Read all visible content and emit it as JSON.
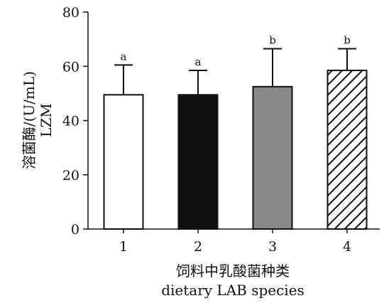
{
  "chart_data": {
    "type": "bar",
    "categories": [
      "1",
      "2",
      "3",
      "4"
    ],
    "values": [
      49.5,
      49.5,
      52.5,
      58.5
    ],
    "error_upper": [
      60.5,
      58.5,
      66.5,
      66.5
    ],
    "annotations": [
      "a",
      "a",
      "b",
      "b"
    ],
    "bar_styles": [
      {
        "fill": "#ffffff",
        "pattern": "none"
      },
      {
        "fill": "#111111",
        "pattern": "none"
      },
      {
        "fill": "#888888",
        "pattern": "none"
      },
      {
        "fill": "#ffffff",
        "pattern": "diagonal-hatch"
      }
    ],
    "ylim": [
      0,
      80
    ],
    "yticks": [
      0,
      20,
      40,
      60,
      80
    ],
    "ylabel_line1": "溶菌酶/(U/mL)",
    "ylabel_line2": "LZM",
    "xlabel_line1": "饲料中乳酸菌种类",
    "xlabel_line2": "dietary LAB species",
    "grid": false
  }
}
